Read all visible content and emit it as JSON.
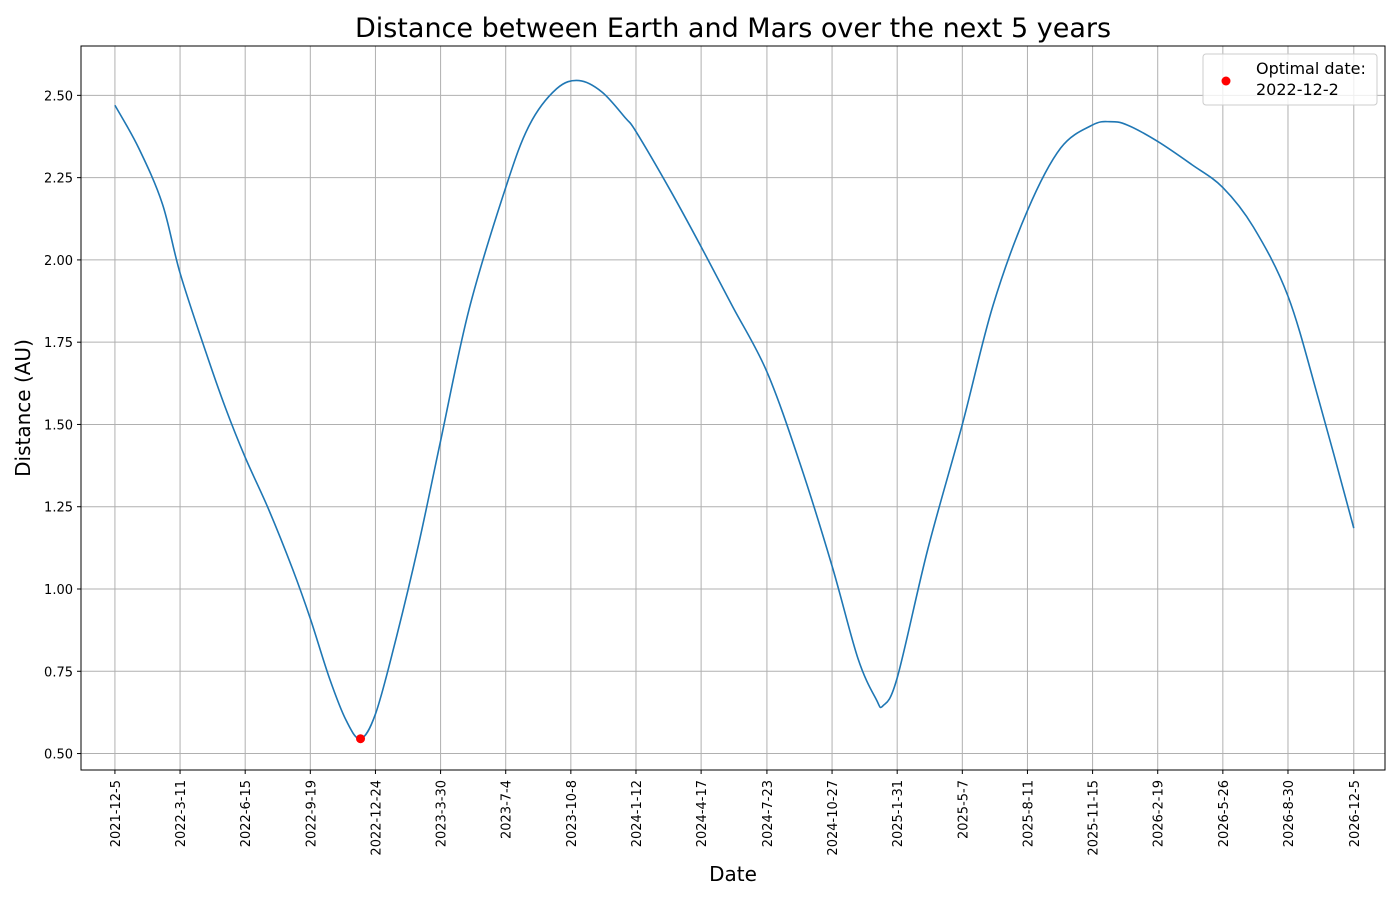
{
  "chart_data": {
    "type": "line",
    "title": "Distance between Earth and Mars over the next 5 years",
    "xlabel": "Date",
    "ylabel": "Distance (AU)",
    "x_ticks": [
      "2021-12-5",
      "2022-3-11",
      "2022-6-15",
      "2022-9-19",
      "2022-12-24",
      "2023-3-30",
      "2023-7-4",
      "2023-10-8",
      "2024-1-12",
      "2024-4-17",
      "2024-7-23",
      "2024-10-27",
      "2025-1-31",
      "2025-5-7",
      "2025-8-11",
      "2025-11-15",
      "2026-2-19",
      "2026-5-26",
      "2026-8-30",
      "2026-12-5"
    ],
    "y_ticks": [
      "0.50",
      "0.75",
      "1.00",
      "1.25",
      "1.50",
      "1.75",
      "2.00",
      "2.25",
      "2.50"
    ],
    "xlim": [
      "2021-10-16",
      "2027-1-20"
    ],
    "ylim": [
      0.45,
      2.65
    ],
    "grid": true,
    "legend_position": "top-right",
    "series": [
      {
        "color": "#1f77b4",
        "points": [
          [
            "2021-12-5",
            2.47
          ],
          [
            "2022-1-9",
            2.34
          ],
          [
            "2022-2-13",
            2.17
          ],
          [
            "2022-3-11",
            1.96
          ],
          [
            "2022-4-18",
            1.72
          ],
          [
            "2022-5-17",
            1.55
          ],
          [
            "2022-6-15",
            1.4
          ],
          [
            "2022-7-20",
            1.24
          ],
          [
            "2022-8-24",
            1.06
          ],
          [
            "2022-9-19",
            0.91
          ],
          [
            "2022-10-17",
            0.73
          ],
          [
            "2022-11-11",
            0.6
          ],
          [
            "2022-12-2",
            0.545
          ],
          [
            "2022-12-24",
            0.62
          ],
          [
            "2023-1-21",
            0.83
          ],
          [
            "2023-2-25",
            1.13
          ],
          [
            "2023-3-30",
            1.45
          ],
          [
            "2023-5-11",
            1.85
          ],
          [
            "2023-7-4",
            2.22
          ],
          [
            "2023-8-8",
            2.41
          ],
          [
            "2023-9-17",
            2.52
          ],
          [
            "2023-10-20",
            2.545
          ],
          [
            "2023-11-23",
            2.51
          ],
          [
            "2023-12-28",
            2.43
          ],
          [
            "2024-1-12",
            2.39
          ],
          [
            "2024-3-3",
            2.21
          ],
          [
            "2024-4-17",
            2.04
          ],
          [
            "2024-6-2",
            1.86
          ],
          [
            "2024-7-23",
            1.66
          ],
          [
            "2024-9-10",
            1.38
          ],
          [
            "2024-10-27",
            1.07
          ],
          [
            "2024-12-4",
            0.79
          ],
          [
            "2024-12-31",
            0.665
          ],
          [
            "2025-1-10",
            0.645
          ],
          [
            "2025-1-31",
            0.73
          ],
          [
            "2025-3-17",
            1.12
          ],
          [
            "2025-5-7",
            1.5
          ],
          [
            "2025-6-21",
            1.86
          ],
          [
            "2025-8-11",
            2.15
          ],
          [
            "2025-9-29",
            2.34
          ],
          [
            "2025-11-15",
            2.41
          ],
          [
            "2025-12-11",
            2.42
          ],
          [
            "2026-1-5",
            2.41
          ],
          [
            "2026-2-19",
            2.36
          ],
          [
            "2026-4-10",
            2.29
          ],
          [
            "2026-5-26",
            2.22
          ],
          [
            "2026-7-10",
            2.1
          ],
          [
            "2026-8-30",
            1.89
          ],
          [
            "2026-10-15",
            1.57
          ],
          [
            "2026-12-5",
            1.185
          ]
        ]
      }
    ],
    "highlight_point": {
      "x": "2022-12-2",
      "y": 0.545,
      "color": "#ff0000"
    },
    "legend": {
      "entry_line1": "Optimal date:",
      "entry_line2": "2022-12-2",
      "marker_color": "#ff0000"
    }
  }
}
